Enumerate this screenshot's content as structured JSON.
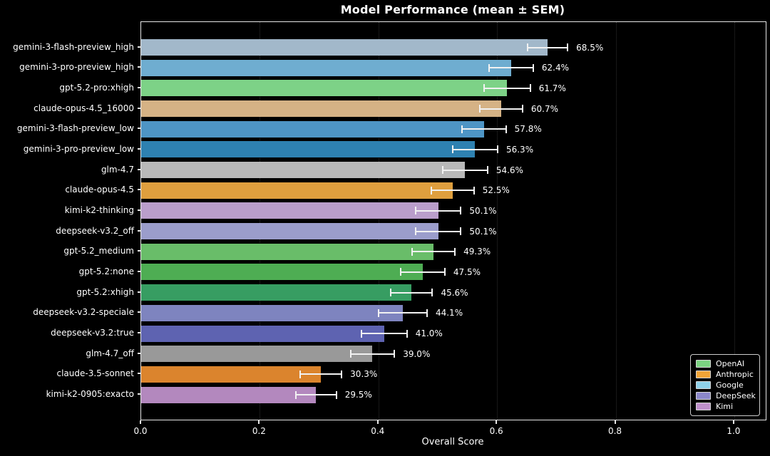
{
  "figure": {
    "background": "#000000",
    "text_color": "#ffffff",
    "spine_color": "#e6e6e6"
  },
  "chart_data": {
    "type": "bar",
    "orientation": "horizontal",
    "title": "Model Performance (mean ± SEM)",
    "xlabel": "Overall Score",
    "ylabel": "",
    "xlim": [
      0.0,
      1.053
    ],
    "x_ticks": [
      0.0,
      0.2,
      0.4,
      0.6,
      0.8,
      1.0
    ],
    "x_tick_labels": [
      "0.0",
      "0.2",
      "0.4",
      "0.6",
      "0.8",
      "1.0"
    ],
    "grid": "vertical dotted gridlines at x ticks",
    "error_bars": "horizontal SEM whiskers with end caps, white",
    "bars": [
      {
        "label": "gemini-3-flash-preview_high",
        "value": 0.685,
        "sem": 0.034,
        "value_label": "68.5%",
        "color": "#a2b8ca",
        "org": "Google"
      },
      {
        "label": "gemini-3-pro-preview_high",
        "value": 0.624,
        "sem": 0.037,
        "value_label": "62.4%",
        "color": "#6fadd0",
        "org": "Google"
      },
      {
        "label": "gpt-5.2-pro:xhigh",
        "value": 0.617,
        "sem": 0.039,
        "value_label": "61.7%",
        "color": "#7dd287",
        "org": "OpenAI"
      },
      {
        "label": "claude-opus-4.5_16000",
        "value": 0.607,
        "sem": 0.036,
        "value_label": "60.7%",
        "color": "#d5b285",
        "org": "Anthropic"
      },
      {
        "label": "gemini-3-flash-preview_low",
        "value": 0.578,
        "sem": 0.037,
        "value_label": "57.8%",
        "color": "#4e95c5",
        "org": "Google"
      },
      {
        "label": "gemini-3-pro-preview_low",
        "value": 0.563,
        "sem": 0.038,
        "value_label": "56.3%",
        "color": "#2e81b1",
        "org": "Google"
      },
      {
        "label": "glm-4.7",
        "value": 0.546,
        "sem": 0.038,
        "value_label": "54.6%",
        "color": "#b9b9b9",
        "org": "GLM"
      },
      {
        "label": "claude-opus-4.5",
        "value": 0.525,
        "sem": 0.036,
        "value_label": "52.5%",
        "color": "#df9f3e",
        "org": "Anthropic"
      },
      {
        "label": "kimi-k2-thinking",
        "value": 0.501,
        "sem": 0.038,
        "value_label": "50.1%",
        "color": "#ba9ecb",
        "org": "Kimi"
      },
      {
        "label": "deepseek-v3.2_off",
        "value": 0.501,
        "sem": 0.038,
        "value_label": "50.1%",
        "color": "#9b9dcb",
        "org": "DeepSeek"
      },
      {
        "label": "gpt-5.2_medium",
        "value": 0.493,
        "sem": 0.036,
        "value_label": "49.3%",
        "color": "#69bd69",
        "org": "OpenAI"
      },
      {
        "label": "gpt-5.2:none",
        "value": 0.475,
        "sem": 0.037,
        "value_label": "47.5%",
        "color": "#4ead53",
        "org": "OpenAI"
      },
      {
        "label": "gpt-5.2:xhigh",
        "value": 0.456,
        "sem": 0.035,
        "value_label": "45.6%",
        "color": "#379d62",
        "org": "OpenAI"
      },
      {
        "label": "deepseek-v3.2-speciale",
        "value": 0.441,
        "sem": 0.041,
        "value_label": "44.1%",
        "color": "#7e84bf",
        "org": "DeepSeek"
      },
      {
        "label": "deepseek-v3.2:true",
        "value": 0.41,
        "sem": 0.038,
        "value_label": "41.0%",
        "color": "#5e63b1",
        "org": "DeepSeek"
      },
      {
        "label": "glm-4.7_off",
        "value": 0.39,
        "sem": 0.037,
        "value_label": "39.0%",
        "color": "#999999",
        "org": "GLM"
      },
      {
        "label": "claude-3.5-sonnet",
        "value": 0.303,
        "sem": 0.035,
        "value_label": "30.3%",
        "color": "#db842d",
        "org": "Anthropic"
      },
      {
        "label": "kimi-k2-0905:exacto",
        "value": 0.295,
        "sem": 0.034,
        "value_label": "29.5%",
        "color": "#b388be",
        "org": "Kimi"
      }
    ],
    "legend": {
      "position": "lower right",
      "entries": [
        {
          "label": "OpenAI",
          "color": "#7bd381"
        },
        {
          "label": "Anthropic",
          "color": "#f0a437"
        },
        {
          "label": "Google",
          "color": "#8ed1e9"
        },
        {
          "label": "DeepSeek",
          "color": "#8b87c9"
        },
        {
          "label": "Kimi",
          "color": "#bf90cc"
        }
      ]
    }
  }
}
